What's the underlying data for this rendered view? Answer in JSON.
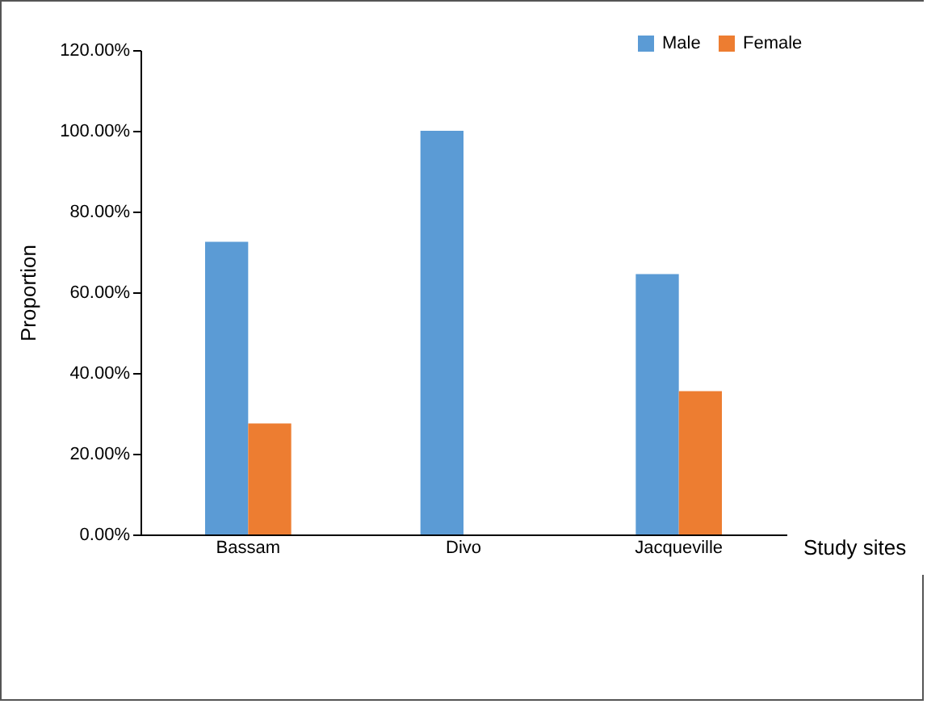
{
  "chart_data": {
    "type": "bar",
    "xlabel": "Study sites",
    "ylabel": "Proportion",
    "categories": [
      "Bassam",
      "Divo",
      "Jacqueville"
    ],
    "series": [
      {
        "name": "Male",
        "color": "#5b9bd5",
        "values": [
          72.5,
          100,
          64.5
        ]
      },
      {
        "name": "Female",
        "color": "#ed7d31",
        "values": [
          27.5,
          0,
          35.5
        ]
      }
    ],
    "ylim": [
      0,
      120
    ],
    "yticks": [
      {
        "value": 0,
        "label": "0.00%"
      },
      {
        "value": 20,
        "label": "20.00%"
      },
      {
        "value": 40,
        "label": "40.00%"
      },
      {
        "value": 60,
        "label": "60.00%"
      },
      {
        "value": 80,
        "label": "80.00%"
      },
      {
        "value": 100,
        "label": "100.00%"
      },
      {
        "value": 120,
        "label": "120.00%"
      }
    ],
    "grid": false,
    "legend": "top right"
  }
}
